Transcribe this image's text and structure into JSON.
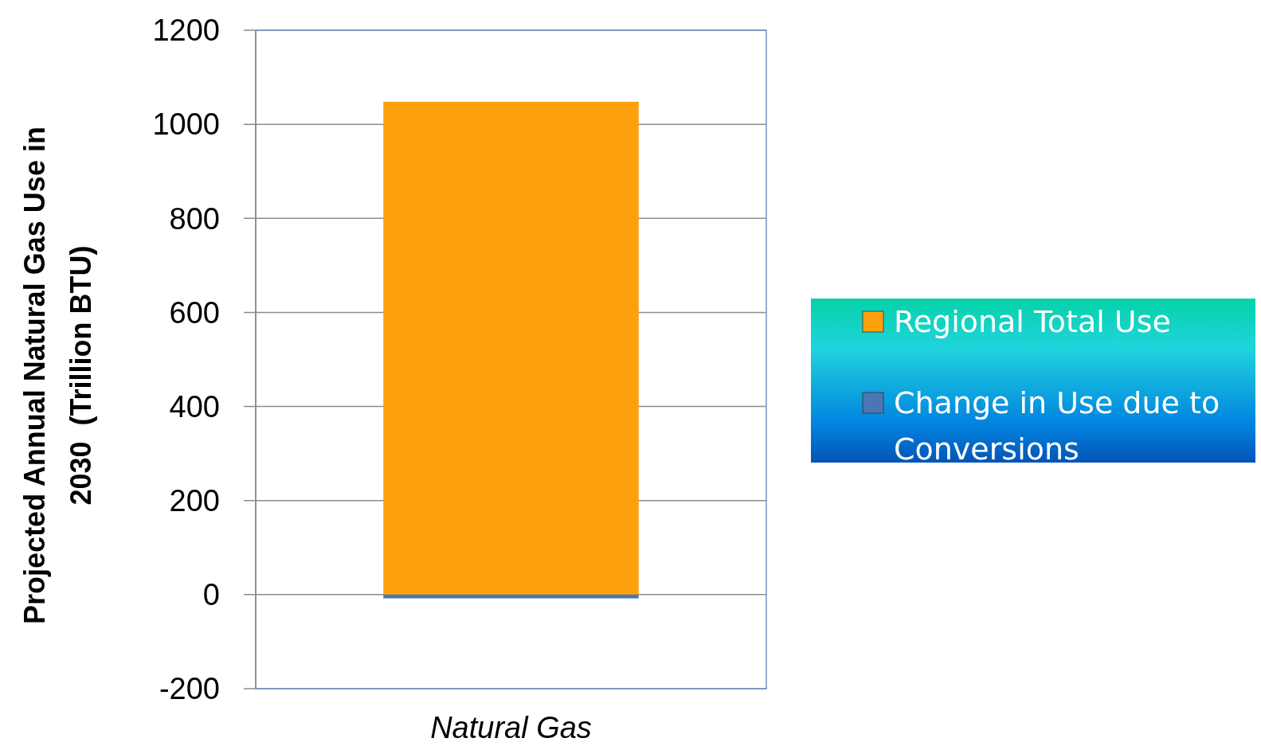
{
  "chart_data": {
    "type": "bar",
    "stacked": true,
    "ylabel": "Projected Annual Natural Gas Use in 2030  (Trillion BTU)",
    "categories": [
      "Natural Gas"
    ],
    "series": [
      {
        "name": "Regional Total Use",
        "color": "#fca00c",
        "values": [
          1048
        ]
      },
      {
        "name": "Change in Use due to Conversions",
        "color": "#4a76b4",
        "values": [
          -8
        ]
      }
    ],
    "ylim": [
      -200,
      1200
    ],
    "yticks": [
      -200,
      0,
      200,
      400,
      600,
      800,
      1000,
      1200
    ],
    "grid": "y",
    "legend": "right"
  }
}
